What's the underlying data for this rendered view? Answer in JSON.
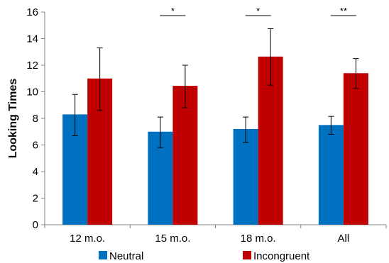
{
  "chart_data": {
    "type": "bar",
    "categories": [
      "12 m.o.",
      "15 m.o.",
      "18 m.o.",
      "All"
    ],
    "series": [
      {
        "name": "Neutral",
        "color": "#0070C0",
        "values": [
          8.3,
          7.0,
          7.2,
          7.5
        ],
        "err_low": [
          6.7,
          5.8,
          6.2,
          6.8
        ],
        "err_high": [
          9.8,
          8.1,
          8.1,
          8.15
        ]
      },
      {
        "name": "Incongruent",
        "color": "#C00000",
        "values": [
          11.0,
          10.45,
          12.65,
          11.4
        ],
        "err_low": [
          8.6,
          8.8,
          10.5,
          10.25
        ],
        "err_high": [
          13.3,
          12.0,
          14.75,
          12.5
        ]
      }
    ],
    "ylabel": "Looking Times",
    "xlabel": "",
    "ylim": [
      0,
      16
    ],
    "yticks": [
      "0",
      "2",
      "4",
      "6",
      "8",
      "10",
      "12",
      "14",
      "16"
    ],
    "grid": false,
    "legend": "bottom",
    "significance": [
      "",
      "*",
      "*",
      "**"
    ]
  }
}
